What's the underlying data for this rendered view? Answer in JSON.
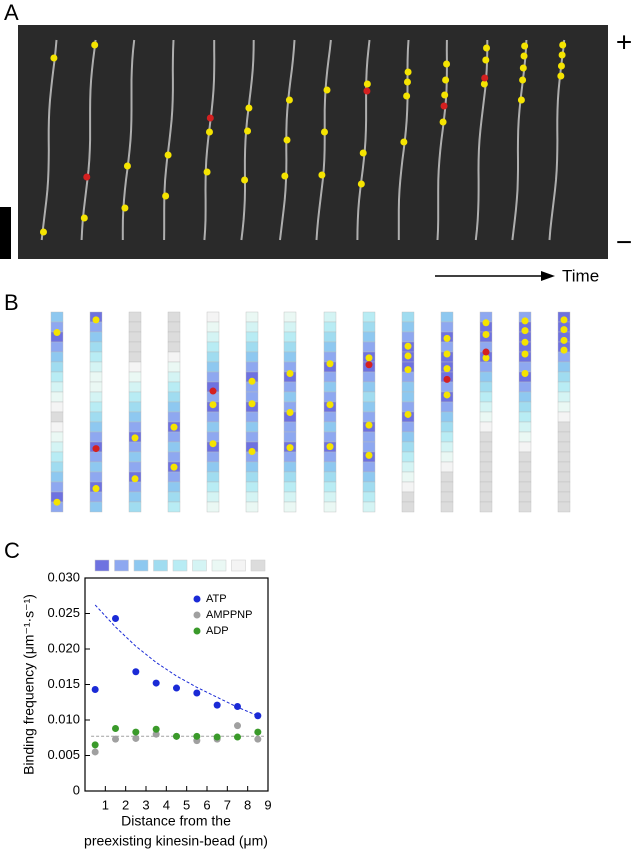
{
  "panels": {
    "a": "A",
    "b": "B",
    "c": "C"
  },
  "plus": "+",
  "minus": "−",
  "time": "Time",
  "chart_data": {
    "type": "scatter",
    "ylabel": "Binding frequency (μm⁻¹·s⁻¹)",
    "xlabel": [
      "Distance from the",
      "preexisting kinesin-bead (μm)"
    ],
    "x": [
      0.5,
      1.5,
      2.5,
      3.5,
      4.5,
      5.5,
      6.5,
      7.5,
      8.5
    ],
    "series": [
      {
        "name": "ATP",
        "color": "#1a2ad6",
        "values": [
          0.0143,
          0.0243,
          0.0168,
          0.0152,
          0.0145,
          0.0138,
          0.0121,
          0.0119,
          0.0106
        ]
      },
      {
        "name": "AMPPNP",
        "color": "#a0a0a0",
        "values": [
          0.0055,
          0.0073,
          0.0074,
          0.008,
          0.0077,
          0.0071,
          0.0073,
          0.0092,
          0.0073
        ]
      },
      {
        "name": "ADP",
        "color": "#3a9a2a",
        "values": [
          0.0065,
          0.0088,
          0.0083,
          0.0087,
          0.0077,
          0.0077,
          0.0076,
          0.0076,
          0.0083
        ]
      }
    ],
    "fits": [
      {
        "color": "#1a2ad6",
        "x": [
          0.5,
          1.5,
          2.5,
          3.5,
          4.5,
          5.5,
          6.5,
          7.5,
          8.5
        ],
        "values": [
          0.0262,
          0.0231,
          0.0204,
          0.0181,
          0.0162,
          0.0146,
          0.0132,
          0.0118,
          0.0106
        ]
      },
      {
        "color": "#a0a0a0",
        "x": [
          0.3,
          8.8
        ],
        "values": [
          0.0077,
          0.0077
        ]
      }
    ],
    "xlim": [
      0,
      9
    ],
    "xticks": [
      1,
      2,
      3,
      4,
      5,
      6,
      7,
      8,
      9
    ],
    "ylim": [
      0,
      0.03
    ],
    "yticks": [
      0,
      0.005,
      {
        "value": 0.01,
        "label": "0.010"
      },
      0.015,
      {
        "value": 0.02,
        "label": "0.020"
      },
      0.025,
      {
        "value": 0.03,
        "label": "0.030"
      }
    ],
    "legend": "upper right"
  }
}
